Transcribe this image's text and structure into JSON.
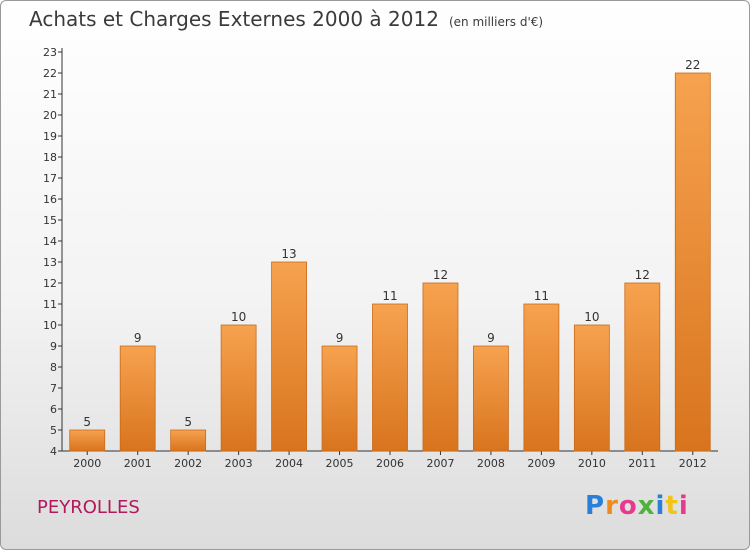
{
  "header": {
    "title": "Achats et Charges Externes 2000 à 2012",
    "unit": "(en milliers d'€)"
  },
  "town": "PEYROLLES",
  "logo": {
    "text": "Proxiti"
  },
  "colors": {
    "bar_top": "#f6a24f",
    "bar_bottom": "#d9741e",
    "bar_edge": "#ca6a1a",
    "town": "#b2185b"
  },
  "chart_data": {
    "type": "bar",
    "categories": [
      "2000",
      "2001",
      "2002",
      "2003",
      "2004",
      "2005",
      "2006",
      "2007",
      "2008",
      "2009",
      "2010",
      "2011",
      "2012"
    ],
    "values": [
      5,
      9,
      5,
      10,
      13,
      9,
      11,
      12,
      9,
      11,
      10,
      12,
      22
    ],
    "title": "Achats et Charges Externes 2000 à 2012",
    "unit": "(en milliers d'€)",
    "ylim": [
      4,
      23
    ],
    "yticks": [
      4,
      5,
      6,
      7,
      8,
      9,
      10,
      11,
      12,
      13,
      14,
      15,
      16,
      17,
      18,
      19,
      20,
      21,
      22,
      23
    ],
    "grid": false
  }
}
